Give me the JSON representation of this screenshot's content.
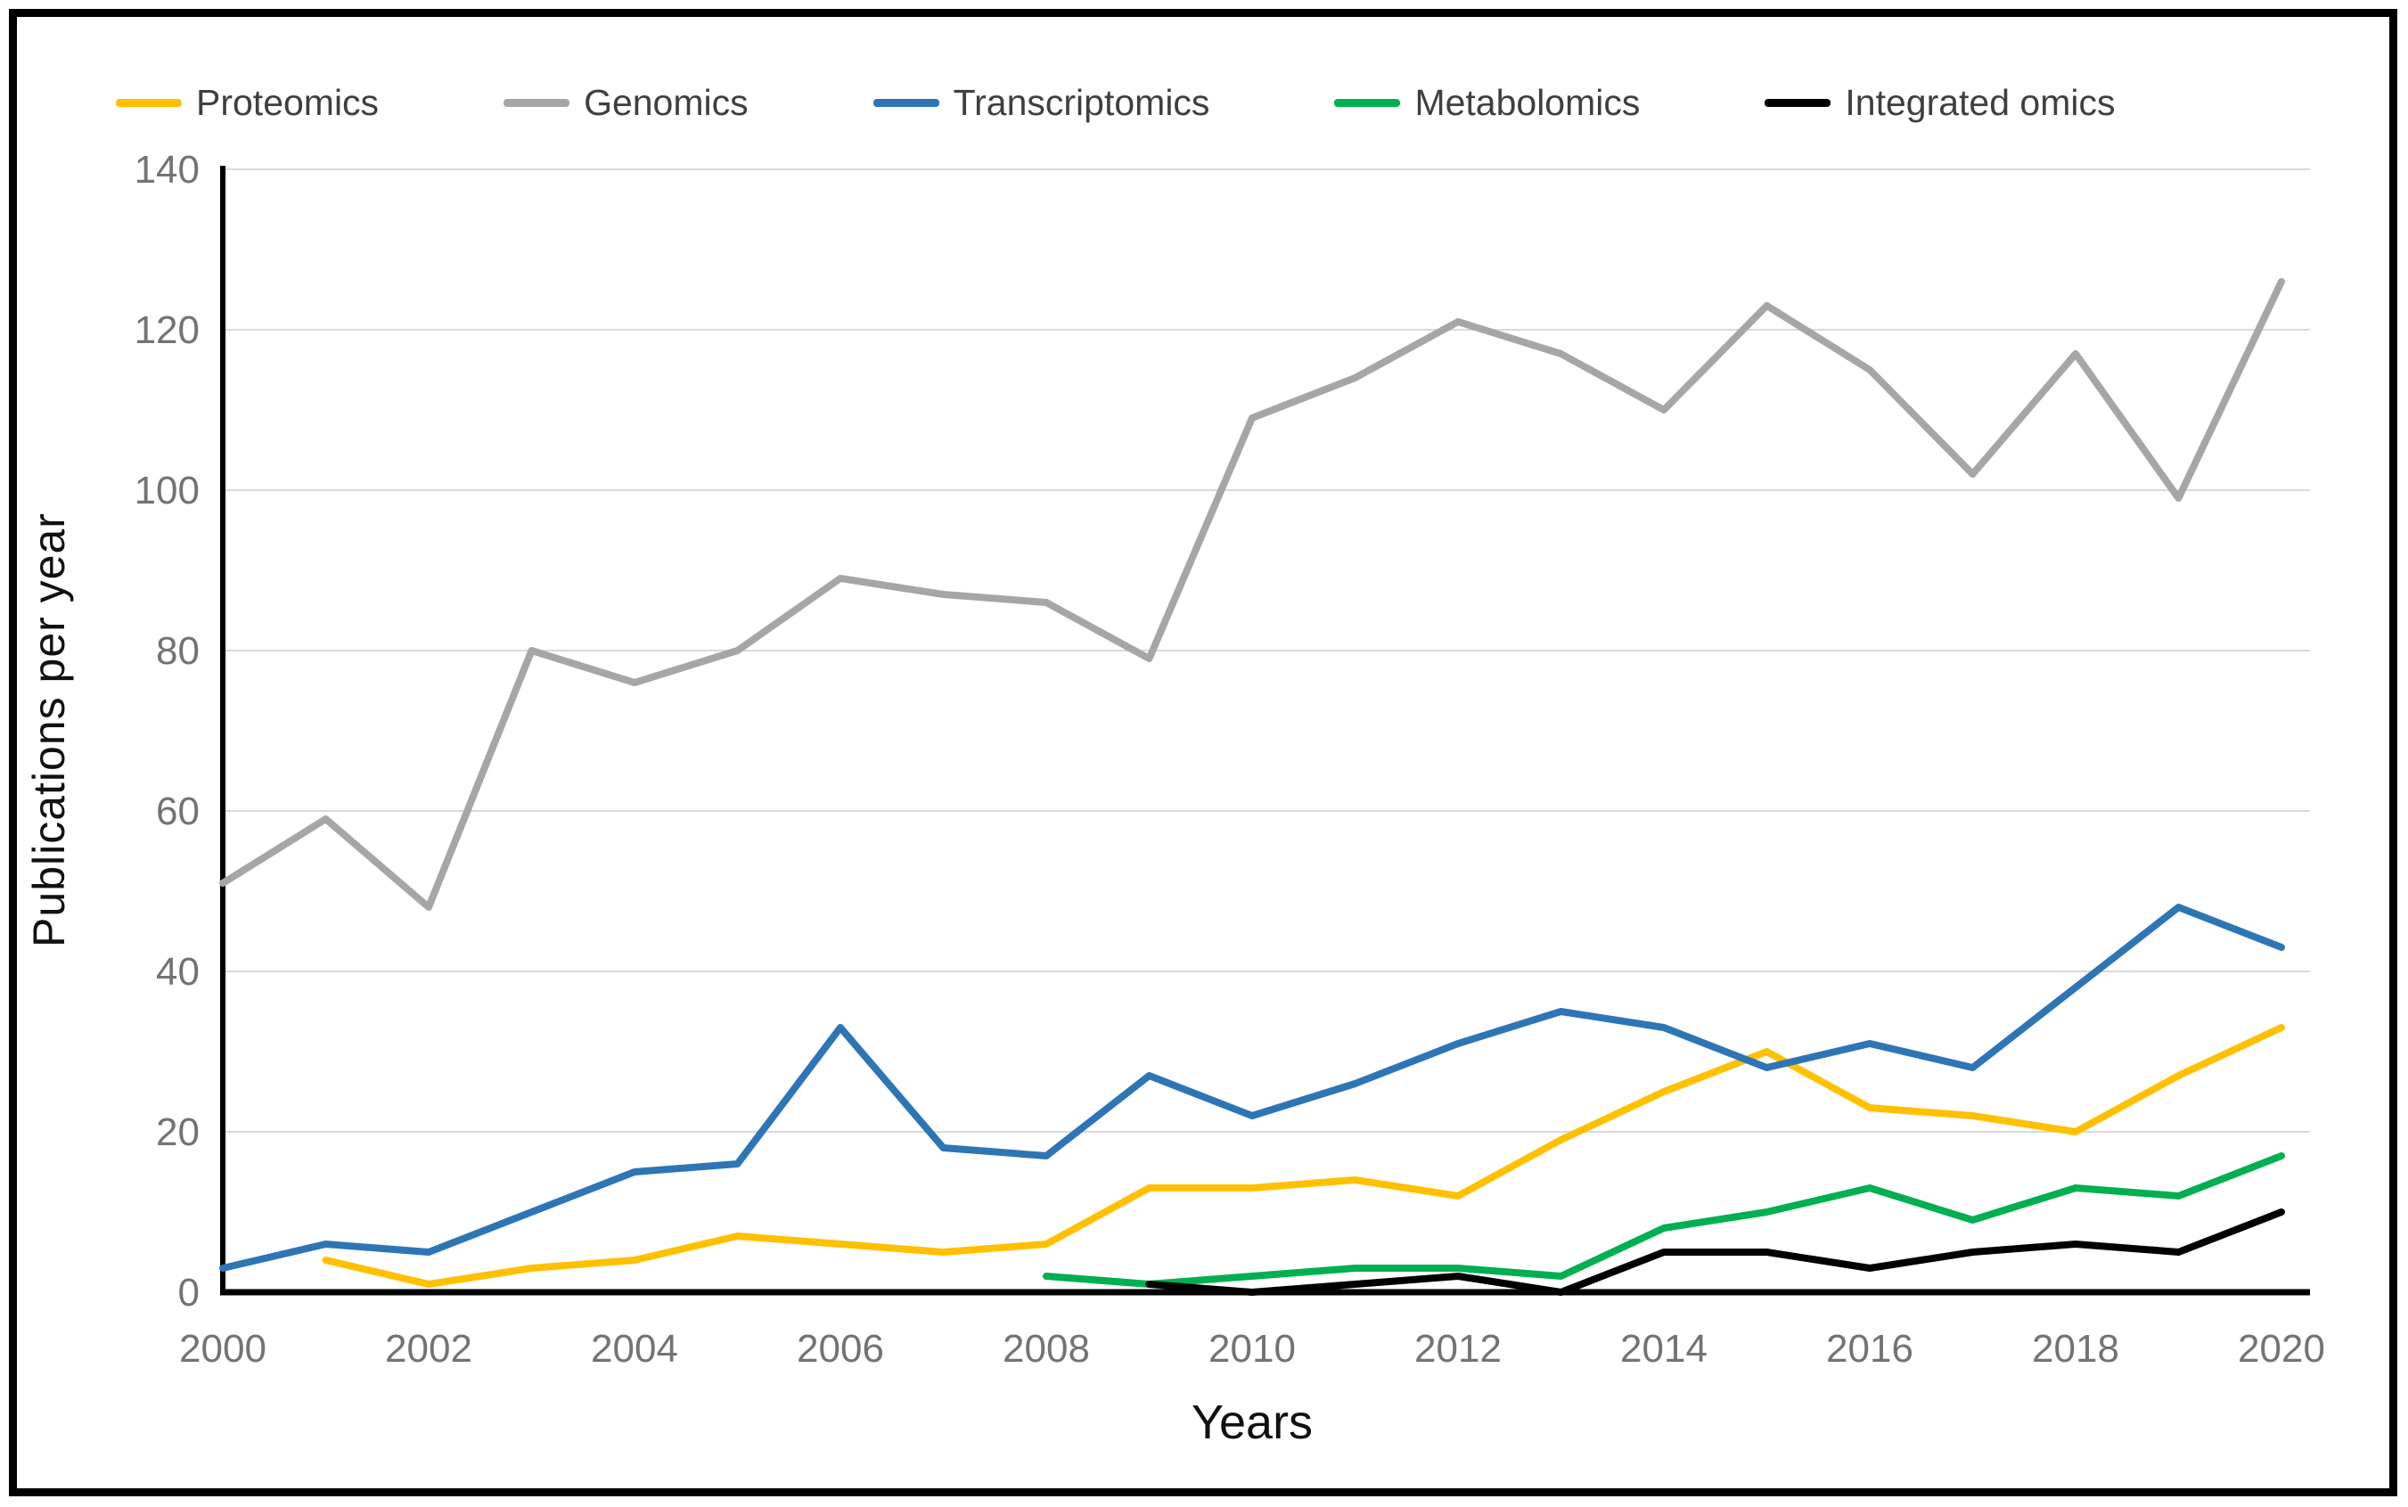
{
  "figure": {
    "background_color": "#FFFFFF",
    "frame_color": "#000000"
  },
  "colors": {
    "gridline": "#D9D9D9",
    "axis_line": "#000000",
    "tick_label": "#737373",
    "axis_title": "#111111",
    "legend_text": "#3F3F3F"
  },
  "chart_data": {
    "type": "line",
    "title": "",
    "xlabel": "Years",
    "ylabel": "Publications per year",
    "x": [
      2000,
      2001,
      2002,
      2003,
      2004,
      2005,
      2006,
      2007,
      2008,
      2009,
      2010,
      2011,
      2012,
      2013,
      2014,
      2015,
      2016,
      2017,
      2018,
      2019,
      2020
    ],
    "xtick_labels": [
      "2000",
      "2002",
      "2004",
      "2006",
      "2008",
      "2010",
      "2012",
      "2014",
      "2016",
      "2018",
      "2020"
    ],
    "ytick_labels": [
      "0",
      "20",
      "40",
      "60",
      "80",
      "100",
      "120",
      "140"
    ],
    "ylim": [
      0,
      140
    ],
    "ytick_step": 20,
    "grid": "horizontal",
    "legend_position": "top",
    "series": [
      {
        "name": "Proteomics",
        "color": "#FFC000",
        "values": [
          null,
          4,
          1,
          3,
          4,
          7,
          6,
          5,
          6,
          13,
          13,
          14,
          12,
          19,
          25,
          30,
          23,
          22,
          20,
          27,
          33
        ]
      },
      {
        "name": "Genomics",
        "color": "#A6A6A6",
        "values": [
          51,
          59,
          48,
          80,
          76,
          80,
          89,
          87,
          86,
          79,
          109,
          114,
          121,
          117,
          110,
          123,
          115,
          102,
          117,
          99,
          126
        ]
      },
      {
        "name": "Transcriptomics",
        "color": "#2E75B6",
        "values": [
          3,
          6,
          5,
          10,
          15,
          16,
          33,
          18,
          17,
          27,
          22,
          26,
          31,
          35,
          33,
          28,
          31,
          28,
          38,
          48,
          43
        ]
      },
      {
        "name": "Metabolomics",
        "color": "#00B050",
        "values": [
          null,
          null,
          null,
          null,
          null,
          null,
          null,
          null,
          2,
          1,
          2,
          3,
          3,
          2,
          8,
          10,
          13,
          9,
          13,
          12,
          17
        ]
      },
      {
        "name": "Integrated omics",
        "color": "#000000",
        "values": [
          null,
          null,
          null,
          null,
          null,
          null,
          null,
          null,
          null,
          1,
          0,
          1,
          2,
          0,
          5,
          5,
          3,
          5,
          6,
          5,
          10
        ]
      }
    ]
  }
}
